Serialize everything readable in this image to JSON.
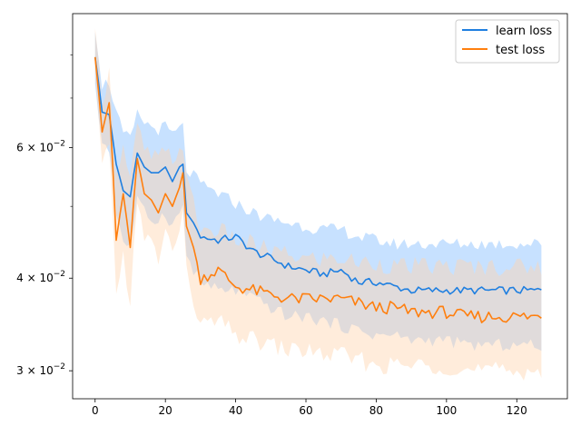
{
  "chart_data": {
    "type": "line",
    "title": "",
    "xlabel": "",
    "ylabel": "",
    "xlim": [
      -6.4,
      134.4
    ],
    "ylim": [
      0.0275,
      0.091
    ],
    "yscale": "log",
    "grid": false,
    "legend_position": "top-right",
    "x_ticks": [
      0,
      20,
      40,
      60,
      80,
      100,
      120
    ],
    "x_tick_labels": [
      "0",
      "20",
      "40",
      "60",
      "80",
      "100",
      "120"
    ],
    "y_major_ticks": [
      {
        "value": 0.03,
        "mantissa": "3",
        "exp": "−2"
      },
      {
        "value": 0.04,
        "mantissa": "4",
        "exp": "−2"
      },
      {
        "value": 0.06,
        "mantissa": "6",
        "exp": "−2"
      }
    ],
    "y_minor_ticks": [
      0.05,
      0.07,
      0.08
    ],
    "x_anchor": [
      0,
      2,
      4,
      6,
      8,
      10,
      12,
      14,
      16,
      18,
      20,
      22,
      24,
      25,
      26,
      28,
      30,
      35,
      40,
      45,
      50,
      55,
      60,
      65,
      70,
      75,
      80,
      85,
      90,
      95,
      100,
      105,
      110,
      115,
      120,
      125,
      127
    ],
    "series": [
      {
        "name": "learn loss",
        "color": "#1f77b4",
        "line_color": "#1f7fe0",
        "band_color": "#99c9ff",
        "mean": [
          0.0795,
          0.067,
          0.0665,
          0.057,
          0.0525,
          0.0515,
          0.059,
          0.0565,
          0.0555,
          0.0555,
          0.0565,
          0.054,
          0.0565,
          0.057,
          0.049,
          0.0475,
          0.0455,
          0.045,
          0.0455,
          0.0435,
          0.0425,
          0.0415,
          0.041,
          0.0405,
          0.041,
          0.0395,
          0.0395,
          0.039,
          0.0385,
          0.0385,
          0.0385,
          0.0385,
          0.0385,
          0.0385,
          0.0385,
          0.0385,
          0.0385
        ],
        "upper": [
          0.0875,
          0.073,
          0.0735,
          0.067,
          0.0625,
          0.0615,
          0.0665,
          0.065,
          0.064,
          0.0635,
          0.064,
          0.0625,
          0.0635,
          0.064,
          0.056,
          0.055,
          0.0535,
          0.052,
          0.0505,
          0.049,
          0.048,
          0.0475,
          0.047,
          0.0465,
          0.0465,
          0.0455,
          0.045,
          0.0445,
          0.0445,
          0.0445,
          0.0445,
          0.0445,
          0.0445,
          0.0445,
          0.0445,
          0.0445,
          0.0445
        ],
        "lower": [
          0.072,
          0.061,
          0.06,
          0.049,
          0.045,
          0.044,
          0.051,
          0.049,
          0.048,
          0.048,
          0.049,
          0.047,
          0.049,
          0.05,
          0.043,
          0.041,
          0.0395,
          0.0385,
          0.0385,
          0.0375,
          0.0365,
          0.0355,
          0.0355,
          0.035,
          0.0345,
          0.034,
          0.0335,
          0.0335,
          0.033,
          0.033,
          0.033,
          0.0325,
          0.0325,
          0.0325,
          0.0325,
          0.0325,
          0.0325
        ]
      },
      {
        "name": "test loss",
        "color": "#ff7f0e",
        "line_color": "#ff7f0e",
        "band_color": "#ffd5b0",
        "mean": [
          0.0795,
          0.063,
          0.069,
          0.045,
          0.052,
          0.044,
          0.058,
          0.052,
          0.051,
          0.049,
          0.052,
          0.05,
          0.053,
          0.0555,
          0.047,
          0.044,
          0.04,
          0.041,
          0.039,
          0.0385,
          0.038,
          0.0375,
          0.0375,
          0.0375,
          0.0375,
          0.037,
          0.0365,
          0.0365,
          0.036,
          0.036,
          0.036,
          0.0355,
          0.0355,
          0.0355,
          0.0355,
          0.0355,
          0.0355
        ],
        "upper": [
          0.0845,
          0.07,
          0.0755,
          0.056,
          0.06,
          0.054,
          0.064,
          0.0595,
          0.0585,
          0.058,
          0.059,
          0.058,
          0.0595,
          0.061,
          0.054,
          0.0505,
          0.0465,
          0.0465,
          0.045,
          0.0445,
          0.0435,
          0.043,
          0.0425,
          0.0425,
          0.0425,
          0.042,
          0.042,
          0.0415,
          0.0415,
          0.0415,
          0.0415,
          0.0415,
          0.0415,
          0.0415,
          0.0415,
          0.0415,
          0.0415
        ],
        "lower": [
          0.074,
          0.0555,
          0.0615,
          0.0375,
          0.043,
          0.037,
          0.05,
          0.0455,
          0.0445,
          0.0425,
          0.046,
          0.044,
          0.046,
          0.049,
          0.0405,
          0.0375,
          0.0345,
          0.035,
          0.0335,
          0.033,
          0.0325,
          0.032,
          0.032,
          0.0315,
          0.0315,
          0.031,
          0.0305,
          0.0305,
          0.0305,
          0.0305,
          0.0305,
          0.03,
          0.03,
          0.03,
          0.03,
          0.03,
          0.03
        ]
      }
    ]
  }
}
